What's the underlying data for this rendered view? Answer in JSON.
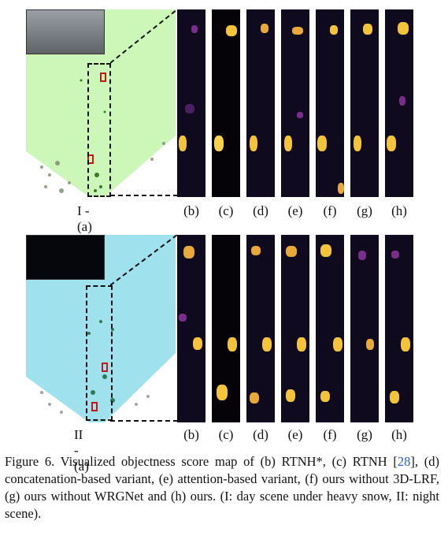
{
  "rows": [
    {
      "id": "I",
      "row_label": "I - (a)",
      "bev_bg": "#ccf7b8",
      "inset_bg": "#7c8188",
      "strip_labels": [
        "(b)",
        "(c)",
        "(d)",
        "(e)",
        "(f)",
        "(g)",
        "(h)"
      ]
    },
    {
      "id": "II",
      "row_label": "II - (a)",
      "bev_bg": "#9fe1ec",
      "inset_bg": "#05070c",
      "strip_labels": [
        "(b)",
        "(c)",
        "(d)",
        "(e)",
        "(f)",
        "(g)",
        "(h)"
      ]
    }
  ],
  "caption": {
    "prefix": "Figure 6.  Visualized objectness score map of (b) RTNH*, (c) RTNH [",
    "cite": "28",
    "suffix": "], (d) concatenation-based variant, (e) attention-based variant, (f) ours without 3D-LRF, (g) ours without WRGNet and (h) ours. (I: day scene under heavy snow, II: night scene)."
  },
  "colors": {
    "heat_low": "#0f0a1e",
    "heat_mid": "#7a2d8a",
    "heat_high": "#f3c33c",
    "box_red": "#c21818"
  }
}
